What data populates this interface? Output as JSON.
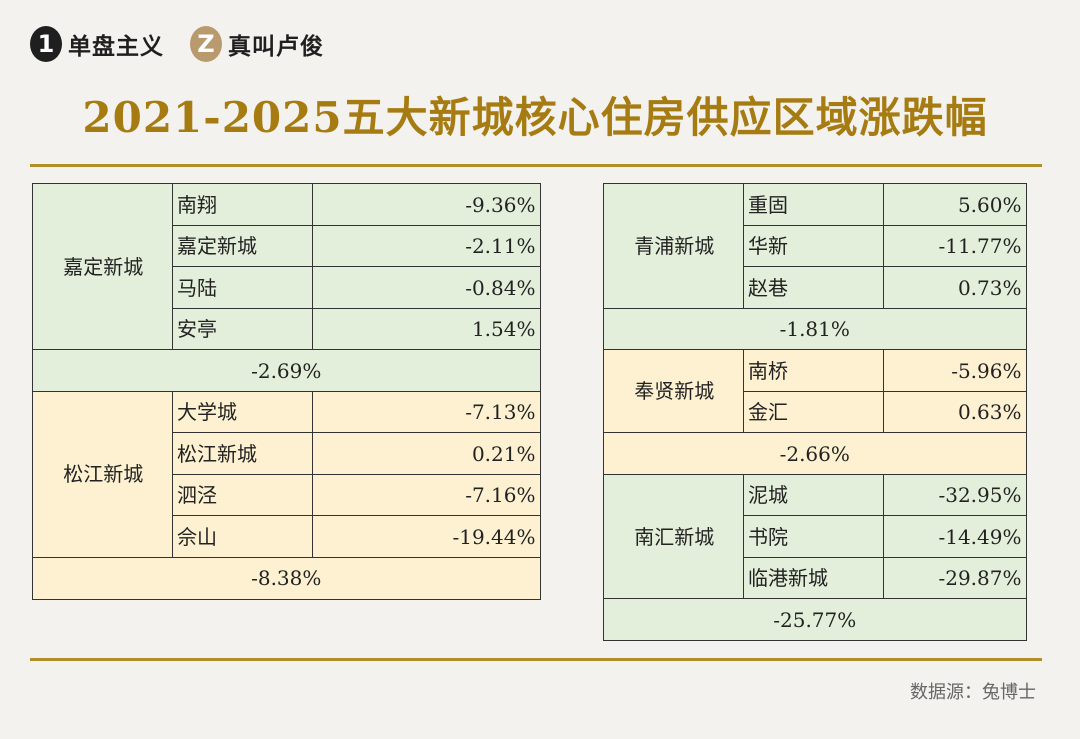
{
  "brand": {
    "left_badge": "1",
    "left_text": "单盘主义",
    "right_badge": "Z",
    "right_text": "真叫卢俊"
  },
  "chart_data": {
    "type": "table",
    "title": "2021-2025五大新城核心住房供应区域涨跌幅",
    "cities": [
      {
        "name": "嘉定新城",
        "total": "-2.69%",
        "color": "#e4efdb",
        "areas": [
          {
            "name": "南翔",
            "value": "-9.36%"
          },
          {
            "name": "嘉定新城",
            "value": "-2.11%"
          },
          {
            "name": "马陆",
            "value": "-0.84%"
          },
          {
            "name": "安亭",
            "value": "1.54%"
          }
        ]
      },
      {
        "name": "松江新城",
        "total": "-8.38%",
        "color": "#fdf1d2",
        "areas": [
          {
            "name": "大学城",
            "value": "-7.13%"
          },
          {
            "name": "松江新城",
            "value": "0.21%"
          },
          {
            "name": "泗泾",
            "value": "-7.16%"
          },
          {
            "name": "佘山",
            "value": "-19.44%"
          }
        ]
      },
      {
        "name": "青浦新城",
        "total": "-1.81%",
        "color": "#e4efdb",
        "areas": [
          {
            "name": "重固",
            "value": "5.60%"
          },
          {
            "name": "华新",
            "value": "-11.77%"
          },
          {
            "name": "赵巷",
            "value": "0.73%"
          }
        ]
      },
      {
        "name": "奉贤新城",
        "total": "-2.66%",
        "color": "#fdf1d2",
        "areas": [
          {
            "name": "南桥",
            "value": "-5.96%"
          },
          {
            "name": "金汇",
            "value": "0.63%"
          }
        ]
      },
      {
        "name": "南汇新城",
        "total": "-25.77%",
        "color": "#e4efdb",
        "areas": [
          {
            "name": "泥城",
            "value": "-32.95%"
          },
          {
            "name": "书院",
            "value": "-14.49%"
          },
          {
            "name": "临港新城",
            "value": "-29.87%"
          }
        ]
      }
    ]
  },
  "source": "数据源：兔博士"
}
